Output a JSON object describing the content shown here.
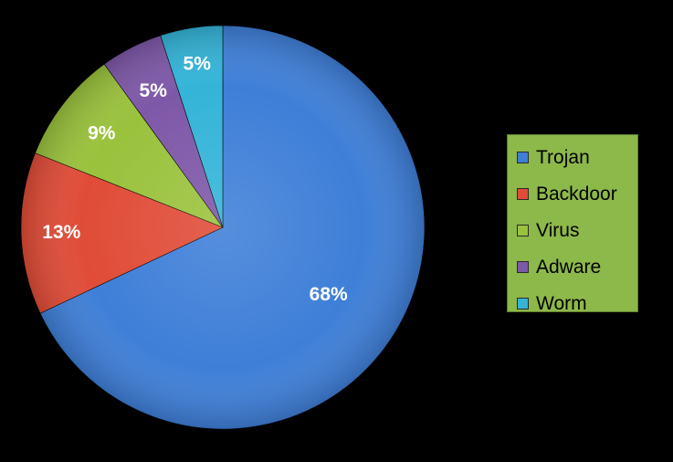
{
  "chart_data": {
    "type": "pie",
    "categories": [
      "Trojan",
      "Backdoor",
      "Virus",
      "Adware",
      "Worm"
    ],
    "values": [
      68,
      13,
      9,
      5,
      5
    ],
    "value_labels": [
      "68%",
      "13%",
      "9%",
      "5%",
      "5%"
    ],
    "colors": [
      "#3f7fd8",
      "#e04c37",
      "#9ac23c",
      "#7e58a8",
      "#34b4d8"
    ],
    "start_angle_deg": 0,
    "direction": "clockwise",
    "legend_placement": "right",
    "legend_background": "#8db84a"
  }
}
